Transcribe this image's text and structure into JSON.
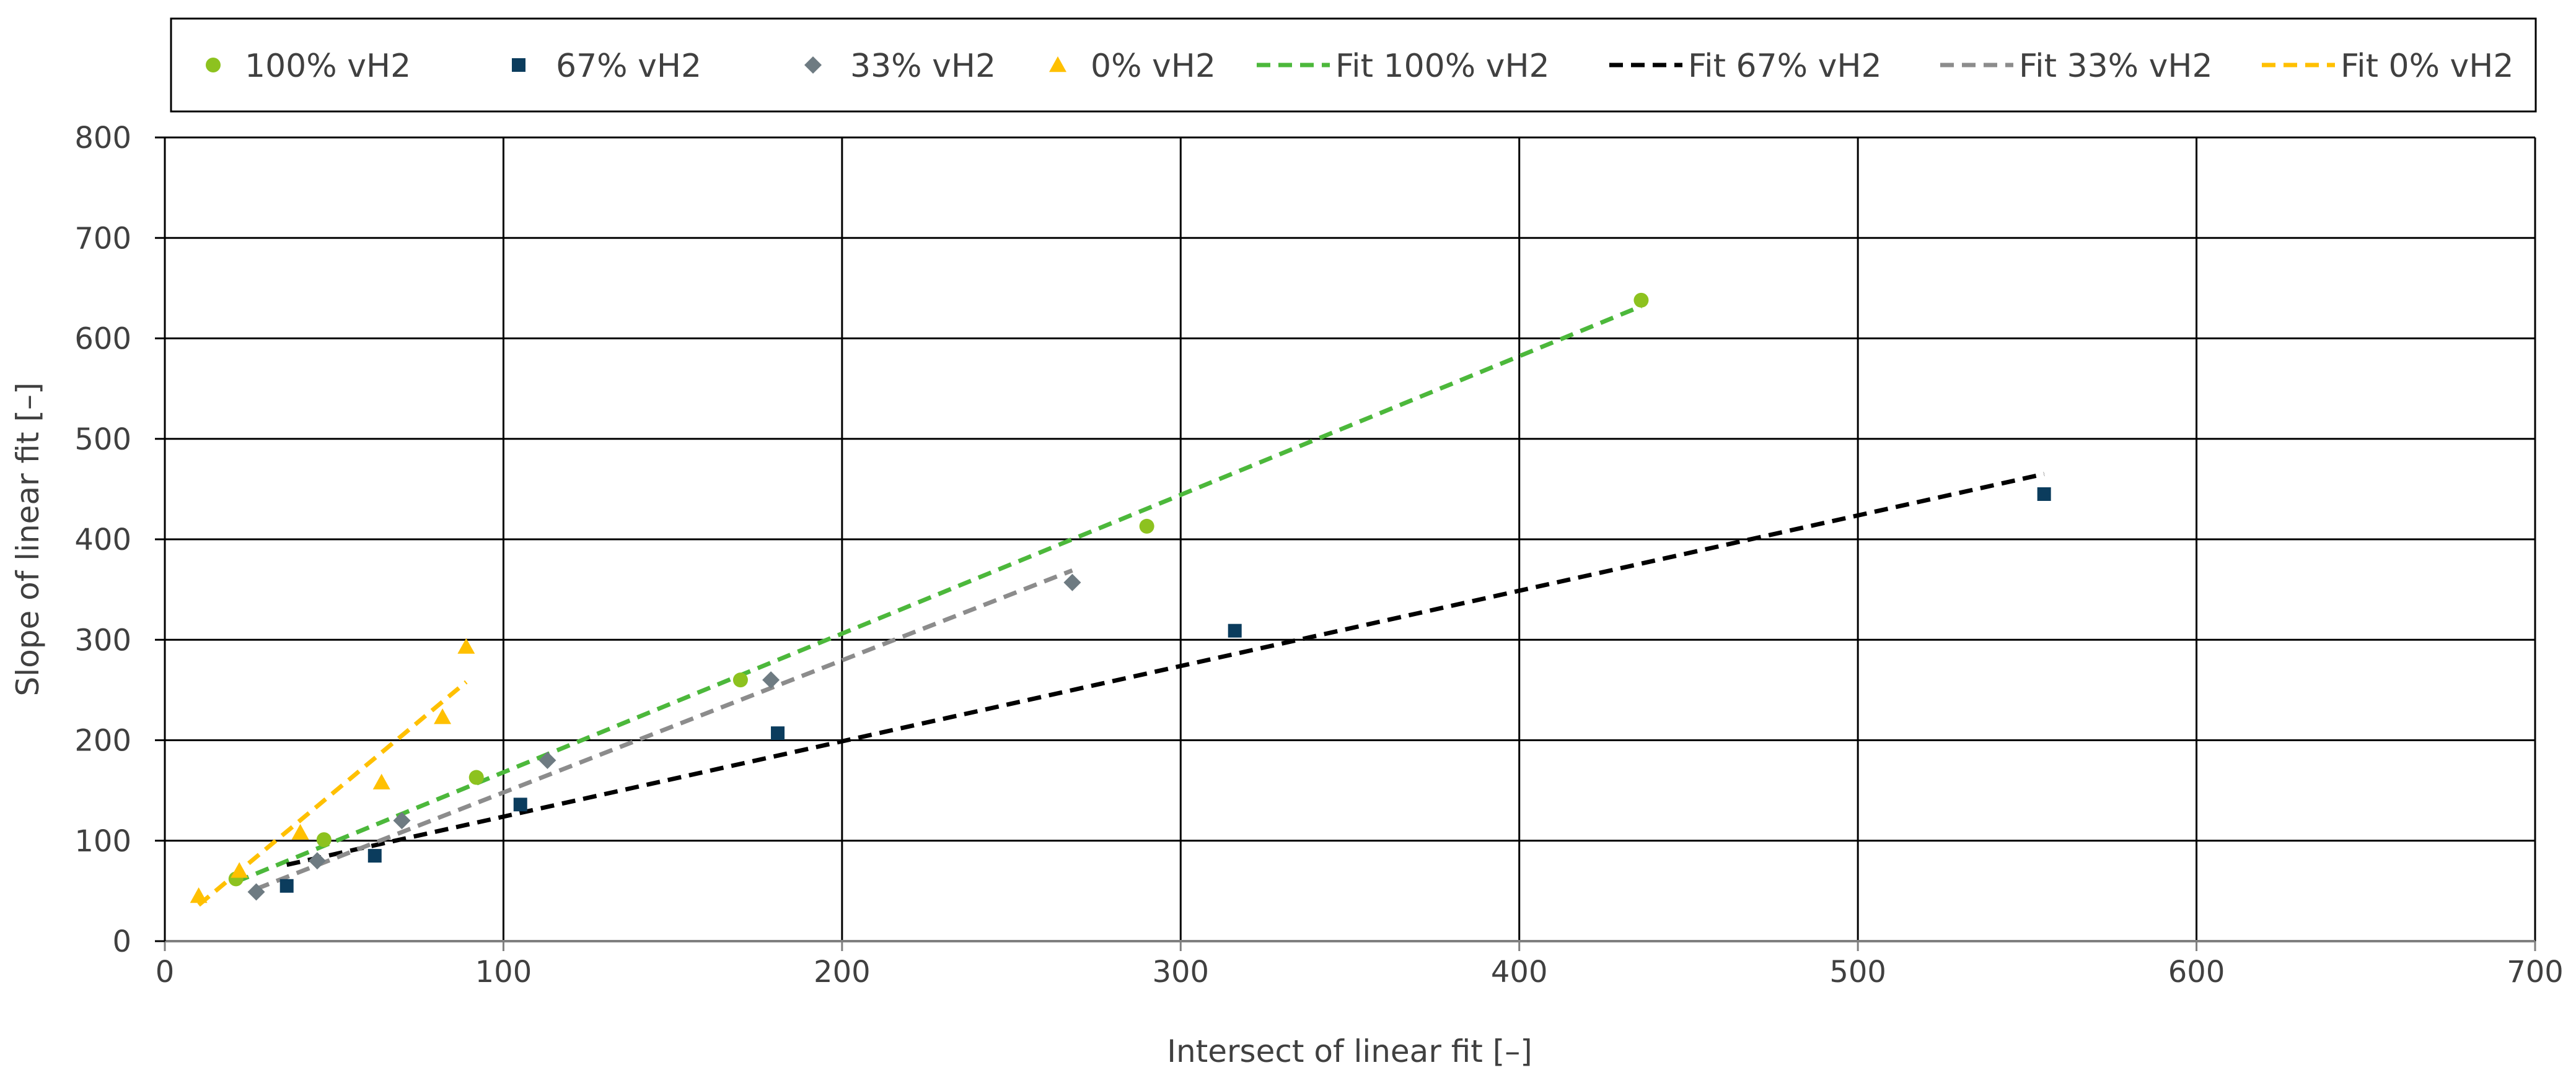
{
  "chart_data": {
    "type": "scatter",
    "title": "",
    "xlabel": "Intersect of linear fit   [–]",
    "ylabel": "Slope of linear fit   [–]",
    "xlim": [
      0,
      700
    ],
    "ylim": [
      0,
      800
    ],
    "x_ticks": [
      0,
      100,
      200,
      300,
      400,
      500,
      600,
      700
    ],
    "y_ticks": [
      0,
      100,
      200,
      300,
      400,
      500,
      600,
      700,
      800
    ],
    "x_tick_labels": [
      "0",
      "100",
      "200",
      "300",
      "400",
      "500",
      "600",
      "700"
    ],
    "y_tick_labels": [
      "0",
      "100",
      "200",
      "300",
      "400",
      "500",
      "600",
      "700",
      "800"
    ],
    "grid": true,
    "legend_position": "top",
    "series": [
      {
        "name": "100% vH2",
        "kind": "points",
        "marker": "circle",
        "color": "#8DC21F",
        "points": [
          [
            21,
            62
          ],
          [
            47,
            101
          ],
          [
            92,
            163
          ],
          [
            170,
            260
          ],
          [
            290,
            413
          ],
          [
            436,
            638
          ]
        ]
      },
      {
        "name": "67% vH2",
        "kind": "points",
        "marker": "square",
        "color": "#0B3C5D",
        "points": [
          [
            36,
            55
          ],
          [
            62,
            85
          ],
          [
            105,
            136
          ],
          [
            181,
            207
          ],
          [
            316,
            309
          ],
          [
            555,
            445
          ]
        ]
      },
      {
        "name": "33% vH2",
        "kind": "points",
        "marker": "diamond",
        "color": "#6E7B82",
        "points": [
          [
            27,
            49
          ],
          [
            45,
            80
          ],
          [
            70,
            120
          ],
          [
            113,
            180
          ],
          [
            179,
            260
          ],
          [
            268,
            357
          ]
        ]
      },
      {
        "name": "0% vH2",
        "kind": "points",
        "marker": "triangle",
        "color": "#FFC000",
        "points": [
          [
            10,
            45
          ],
          [
            22,
            70
          ],
          [
            40,
            108
          ],
          [
            64,
            158
          ],
          [
            82,
            223
          ],
          [
            89,
            293
          ]
        ]
      },
      {
        "name": "Fit 100% vH2",
        "kind": "fit",
        "color": "#4CB83B",
        "points": [
          [
            21,
            59
          ],
          [
            436,
            632
          ]
        ]
      },
      {
        "name": "Fit 67% vH2",
        "kind": "fit",
        "color": "#000000",
        "points": [
          [
            36,
            76
          ],
          [
            555,
            465
          ]
        ]
      },
      {
        "name": "Fit 33% vH2",
        "kind": "fit",
        "color": "#8C8C8C",
        "points": [
          [
            27,
            52
          ],
          [
            268,
            369
          ]
        ]
      },
      {
        "name": "Fit 0% vH2",
        "kind": "fit",
        "color": "#FFC000",
        "points": [
          [
            10,
            36
          ],
          [
            89,
            258
          ]
        ]
      }
    ]
  }
}
